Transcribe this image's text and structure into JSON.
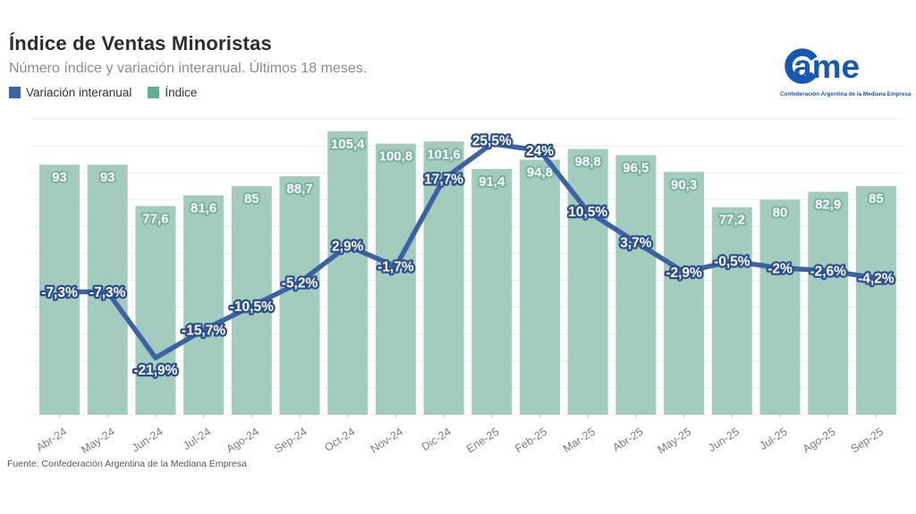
{
  "header": {
    "title": "Índice de Ventas Minoristas",
    "subtitle": "Número índice y variación interanual. Últimos 18 meses.",
    "legend": [
      {
        "label": "Variación interanual",
        "color": "#3a62a5"
      },
      {
        "label": "Índice",
        "color": "#63ae93"
      }
    ]
  },
  "logo": {
    "wordmark": "ame",
    "tagline": "Confederación Argentina de la Mediana Empresa",
    "color": "#1559b3"
  },
  "footer": {
    "source": "Fuente: Confederación Argentina de la Mediana Empresa"
  },
  "chart_data": {
    "type": "bar",
    "title": "Índice de Ventas Minoristas",
    "subtitle": "Número índice y variación interanual. Últimos 18 meses.",
    "categories": [
      "Abr-24",
      "May-24",
      "Jun-24",
      "Jul-24",
      "Ago-24",
      "Sep-24",
      "Oct-24",
      "Nov-24",
      "Dic-24",
      "Ene-25",
      "Feb-25",
      "Mar-25",
      "Abr-25",
      "May-25",
      "Jun-25",
      "Jul-25",
      "Ago-25",
      "Sep-25"
    ],
    "series": [
      {
        "name": "Índice",
        "type": "bar",
        "color": "#a3cbbe",
        "label_outline": "#7ab2a2",
        "values": [
          93,
          93,
          77.6,
          81.6,
          85,
          88.7,
          105.4,
          100.8,
          101.6,
          91.4,
          94.8,
          98.8,
          96.5,
          90.3,
          77.2,
          80,
          82.9,
          85
        ],
        "labels": [
          "93",
          "93",
          "77,6",
          "81,6",
          "85",
          "88,7",
          "105,4",
          "100,8",
          "101,6",
          "91,4",
          "94,8",
          "98,8",
          "96,5",
          "90,3",
          "77,2",
          "80",
          "82,9",
          "85"
        ]
      },
      {
        "name": "Variación interanual",
        "type": "line",
        "color": "#3b63a3",
        "label_outline": "#2b4e91",
        "values": [
          -7.3,
          -7.3,
          -21.9,
          -15.7,
          -10.5,
          -5.2,
          2.9,
          -1.7,
          17.7,
          25.5,
          24,
          10.5,
          3.7,
          -2.9,
          -0.5,
          -2,
          -2.6,
          -4.2
        ],
        "labels": [
          "-7,3%",
          "-7,3%",
          "-21,9%",
          "-15,7%",
          "-10,5%",
          "-5,2%",
          "2,9%",
          "-1,7%",
          "17,7%",
          "25,5%",
          "24%",
          "10,5%",
          "3,7%",
          "-2,9%",
          "-0,5%",
          "-2%",
          "-2,6%",
          "-4,2%"
        ]
      }
    ],
    "bar_axis": {
      "min": 0,
      "max": 110,
      "grid_step": 10
    },
    "line_axis": {
      "min": -34.5,
      "max": 31
    },
    "grid": true,
    "legend_position": "top-left",
    "y_tick_labels_visible": false
  }
}
